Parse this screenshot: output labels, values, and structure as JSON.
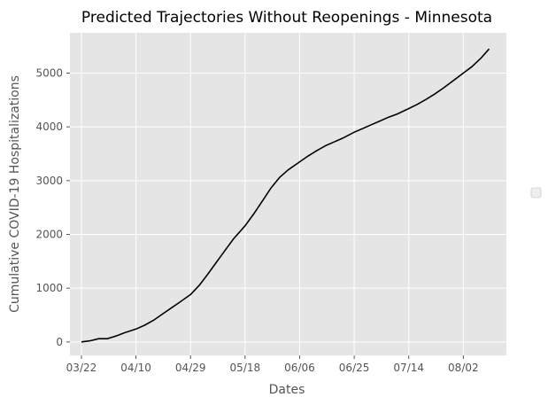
{
  "chart_data": {
    "type": "line",
    "title": "Predicted Trajectories Without Reopenings - Minnesota",
    "xlabel": "Dates",
    "ylabel": "Cumulative COVID-19 Hospitalizations",
    "x_tick_labels": [
      "03/22",
      "04/10",
      "04/29",
      "05/18",
      "06/06",
      "06/25",
      "07/14",
      "08/02"
    ],
    "y_ticks": [
      0,
      1000,
      2000,
      3000,
      4000,
      5000
    ],
    "xlim": [
      "2020-03-18",
      "2020-08-17"
    ],
    "ylim": [
      -250,
      5750
    ],
    "grid": true,
    "legend": "right (empty)",
    "series": [
      {
        "color": "#000000",
        "x": [
          "2020-03-22",
          "2020-03-25",
          "2020-03-28",
          "2020-03-31",
          "2020-04-03",
          "2020-04-06",
          "2020-04-10",
          "2020-04-13",
          "2020-04-16",
          "2020-04-19",
          "2020-04-22",
          "2020-04-25",
          "2020-04-29",
          "2020-05-02",
          "2020-05-05",
          "2020-05-08",
          "2020-05-11",
          "2020-05-14",
          "2020-05-18",
          "2020-05-21",
          "2020-05-24",
          "2020-05-27",
          "2020-05-30",
          "2020-06-02",
          "2020-06-06",
          "2020-06-09",
          "2020-06-12",
          "2020-06-15",
          "2020-06-18",
          "2020-06-21",
          "2020-06-25",
          "2020-06-28",
          "2020-07-01",
          "2020-07-04",
          "2020-07-07",
          "2020-07-10",
          "2020-07-14",
          "2020-07-17",
          "2020-07-20",
          "2020-07-23",
          "2020-07-26",
          "2020-07-29",
          "2020-08-02",
          "2020-08-05",
          "2020-08-08",
          "2020-08-11"
        ],
        "y": [
          0,
          20,
          60,
          60,
          110,
          170,
          240,
          310,
          400,
          510,
          620,
          730,
          880,
          1050,
          1260,
          1480,
          1700,
          1920,
          2160,
          2380,
          2620,
          2860,
          3060,
          3200,
          3350,
          3460,
          3560,
          3650,
          3720,
          3790,
          3900,
          3970,
          4040,
          4110,
          4180,
          4240,
          4340,
          4420,
          4510,
          4610,
          4720,
          4840,
          5000,
          5120,
          5270,
          5450
        ]
      }
    ]
  }
}
